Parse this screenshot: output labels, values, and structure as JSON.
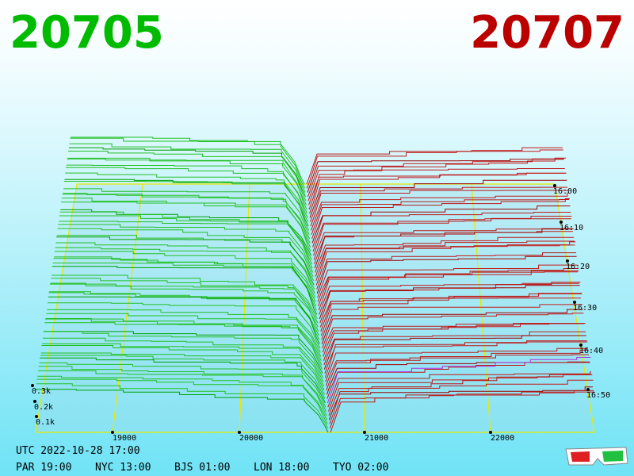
{
  "header": {
    "bid_price": "20705",
    "ask_price": "20707"
  },
  "price_axis": [
    "19000",
    "20000",
    "21000",
    "22000"
  ],
  "time_axis": [
    "16:00",
    "16:10",
    "16:20",
    "16:30",
    "16:40",
    "16:50"
  ],
  "depth_axis": [
    "0.3k",
    "0.2k",
    "0.1k"
  ],
  "footer": {
    "utc": "UTC 2022-10-28 17:00",
    "clocks": [
      "PAR 19:00",
      "NYC 13:00",
      "BJS 01:00",
      "LON 18:00",
      "TYO 02:00"
    ]
  }
}
